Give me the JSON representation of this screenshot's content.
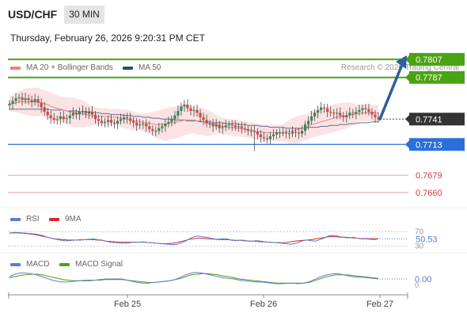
{
  "header": {
    "symbol": "USD/CHF",
    "timeframe": "30 MIN",
    "datetime": "Thursday, February 26, 2026 9:20:31 PM CET"
  },
  "legend": {
    "ma20_label": "MA 20 + Bollinger Bands",
    "ma50_label": "MA 50",
    "research_label": "Research © 2026 Trading Central",
    "rsi_label": "RSI",
    "rsi_ma_label": "9MA",
    "macd_label": "MACD",
    "macd_signal_label": "MACD Signal"
  },
  "colors": {
    "up_candle": "#2e8b57",
    "down_candle": "#d64545",
    "ma20": "#f08080",
    "ma50": "#2b4a7c",
    "bollinger_fill": "#fbdada",
    "resistance": "#4aa312",
    "support": "#2a6fdb",
    "weak_support": "#ef9a9a",
    "current_price": "#333333",
    "arrow": "#2e5d9c",
    "rsi": "#5b7bd5",
    "rsi_ma": "#d62b2b",
    "macd": "#5b7bd5",
    "macd_signal": "#4aa312"
  },
  "chart_data": {
    "type": "candlestick",
    "instrument": "USD/CHF",
    "timeframe": "30 MIN",
    "x_ticks": [
      "Feb 25",
      "Feb 26",
      "Feb 27"
    ],
    "price_ylim": [
      0.7645,
      0.782
    ],
    "levels": [
      {
        "label": "0.7807",
        "value": 0.7807,
        "kind": "resistance"
      },
      {
        "label": "0.7787",
        "value": 0.7787,
        "kind": "resistance"
      },
      {
        "label": "0.7741",
        "value": 0.7741,
        "kind": "current"
      },
      {
        "label": "0.7713",
        "value": 0.7713,
        "kind": "support"
      },
      {
        "label": "0.7679",
        "value": 0.7679,
        "kind": "weak_support"
      },
      {
        "label": "0.7660",
        "value": 0.766,
        "kind": "weak_support"
      }
    ],
    "close": [
      0.7758,
      0.7761,
      0.7764,
      0.7765,
      0.7762,
      0.7764,
      0.7762,
      0.776,
      0.7763,
      0.7759,
      0.7754,
      0.7749,
      0.7745,
      0.7742,
      0.774,
      0.7741,
      0.7744,
      0.7741,
      0.7742,
      0.7745,
      0.7748,
      0.7746,
      0.7749,
      0.775,
      0.7747,
      0.7749,
      0.7746,
      0.7741,
      0.7739,
      0.7737,
      0.7738,
      0.774,
      0.7737,
      0.7736,
      0.7739,
      0.7741,
      0.7743,
      0.7742,
      0.7739,
      0.7737,
      0.7734,
      0.7735,
      0.7736,
      0.7733,
      0.773,
      0.7728,
      0.7728,
      0.7731,
      0.7733,
      0.7736,
      0.7738,
      0.7741,
      0.7745,
      0.775,
      0.7755,
      0.7757,
      0.7753,
      0.775,
      0.7751,
      0.7748,
      0.7743,
      0.774,
      0.7736,
      0.7736,
      0.7733,
      0.7735,
      0.7731,
      0.7732,
      0.7734,
      0.7735,
      0.7734,
      0.7732,
      0.7733,
      0.7731,
      0.773,
      0.7728,
      0.7728,
      0.7727,
      0.7724,
      0.7721,
      0.772,
      0.7719,
      0.7722,
      0.7724,
      0.7726,
      0.7726,
      0.7726,
      0.7725,
      0.7725,
      0.7727,
      0.7726,
      0.7725,
      0.7728,
      0.7735,
      0.7739,
      0.7744,
      0.7748,
      0.7751,
      0.7754,
      0.7753,
      0.7749,
      0.7748,
      0.7747,
      0.7748,
      0.7745,
      0.7743,
      0.7745,
      0.7748,
      0.7747,
      0.7749,
      0.7751,
      0.7753,
      0.7752,
      0.7749,
      0.7746,
      0.7743,
      0.7741
    ],
    "ma20": [
      0.7758,
      0.7758,
      0.7759,
      0.776,
      0.776,
      0.776,
      0.776,
      0.776,
      0.776,
      0.776,
      0.7759,
      0.7758,
      0.7757,
      0.7755,
      0.7754,
      0.7753,
      0.7752,
      0.7751,
      0.775,
      0.7749,
      0.7749,
      0.7748,
      0.7747,
      0.7747,
      0.7746,
      0.7745,
      0.7745,
      0.7744,
      0.7744,
      0.7744,
      0.7744,
      0.7744,
      0.7743,
      0.7743,
      0.7743,
      0.7742,
      0.7741,
      0.7741,
      0.774,
      0.7739,
      0.7739,
      0.7738,
      0.7737,
      0.7737,
      0.7736,
      0.7736,
      0.7735,
      0.7735,
      0.7735,
      0.7735,
      0.7736,
      0.7737,
      0.7737,
      0.7738,
      0.7739,
      0.774,
      0.774,
      0.774,
      0.774,
      0.7739,
      0.7739,
      0.7738,
      0.7737,
      0.7736,
      0.7736,
      0.7735,
      0.7734,
      0.7733,
      0.7733,
      0.7732,
      0.7732,
      0.7731,
      0.7731,
      0.773,
      0.773,
      0.7729,
      0.7729,
      0.7728,
      0.7727,
      0.7727,
      0.7726,
      0.7726,
      0.7726,
      0.7726,
      0.7726,
      0.7726,
      0.7726,
      0.7727,
      0.7727,
      0.7728,
      0.7729,
      0.773,
      0.7731,
      0.7732,
      0.7733,
      0.7735,
      0.7736,
      0.7737,
      0.7738,
      0.7739,
      0.774,
      0.7741,
      0.7742,
      0.7743,
      0.7744,
      0.7744,
      0.7745,
      0.7746,
      0.7746,
      0.7747,
      0.7747,
      0.7748,
      0.7748,
      0.7748,
      0.7748,
      0.7748,
      0.7747
    ],
    "ma50": [
      0.7752,
      0.7752,
      0.7752,
      0.7752,
      0.7752,
      0.7752,
      0.7752,
      0.7752,
      0.7752,
      0.7752,
      0.7752,
      0.7752,
      0.7752,
      0.7751,
      0.7751,
      0.7751,
      0.7751,
      0.7751,
      0.775,
      0.775,
      0.775,
      0.775,
      0.7749,
      0.7749,
      0.7749,
      0.7749,
      0.7749,
      0.7748,
      0.7748,
      0.7747,
      0.7747,
      0.7747,
      0.7746,
      0.7746,
      0.7746,
      0.7746,
      0.7745,
      0.7745,
      0.7745,
      0.7744,
      0.7744,
      0.7744,
      0.7743,
      0.7743,
      0.7743,
      0.7742,
      0.7742,
      0.7742,
      0.7741,
      0.7741,
      0.7741,
      0.7741,
      0.774,
      0.774,
      0.774,
      0.774,
      0.7739,
      0.7739,
      0.7739,
      0.7739,
      0.7738,
      0.7738,
      0.7738,
      0.7738,
      0.7737,
      0.7737,
      0.7737,
      0.7737,
      0.7736,
      0.7736,
      0.7736,
      0.7736,
      0.7735,
      0.7735,
      0.7735,
      0.7734,
      0.7734,
      0.7734,
      0.7734,
      0.7733,
      0.7733,
      0.7733,
      0.7732,
      0.7732,
      0.7732,
      0.7732,
      0.7732,
      0.7731,
      0.7731,
      0.7731,
      0.7731,
      0.7731,
      0.7731,
      0.7731,
      0.7732,
      0.7732,
      0.7732,
      0.7732,
      0.7733,
      0.7733,
      0.7733,
      0.7734,
      0.7734,
      0.7734,
      0.7735,
      0.7735,
      0.7735,
      0.7736,
      0.7736,
      0.7736,
      0.7737,
      0.7737,
      0.7737,
      0.7737,
      0.7738,
      0.7738,
      0.7738
    ],
    "projection": {
      "from": 0.7741,
      "to": 0.7807
    },
    "rsi": {
      "levels": [
        "70",
        "30"
      ],
      "value_label": "50.53",
      "ylim": [
        20,
        80
      ],
      "values": [
        66,
        68,
        68,
        67,
        66,
        65,
        64,
        62,
        59,
        55,
        52,
        49,
        47,
        45,
        45,
        46,
        47,
        47,
        48,
        49,
        50,
        48,
        47,
        44,
        41,
        40,
        39,
        38,
        38,
        40,
        41,
        41,
        42,
        40,
        39,
        38,
        37,
        36,
        35,
        34,
        35,
        39,
        44,
        51,
        56,
        58,
        56,
        55,
        52,
        50,
        49,
        51,
        50,
        46,
        45,
        47,
        46,
        44,
        44,
        45,
        44,
        42,
        41,
        40,
        39,
        38,
        37,
        35,
        37,
        41,
        45,
        47,
        45,
        44,
        48,
        52,
        58,
        60,
        59,
        56,
        54,
        53,
        55,
        52,
        50,
        50,
        49,
        48,
        50
      ],
      "ma": [
        67,
        67,
        67,
        66,
        65,
        64,
        62,
        60,
        57,
        55,
        52,
        50,
        49,
        48,
        47,
        47,
        47,
        48,
        48,
        48,
        48,
        47,
        46,
        44,
        43,
        42,
        41,
        41,
        41,
        41,
        41,
        41,
        41,
        40,
        39,
        38,
        37,
        37,
        37,
        38,
        40,
        43,
        46,
        49,
        51,
        52,
        52,
        51,
        50,
        49,
        48,
        48,
        48,
        47,
        46,
        46,
        45,
        44,
        44,
        43,
        42,
        42,
        41,
        40,
        40,
        39,
        40,
        42,
        44,
        45,
        46,
        47,
        48,
        50,
        52,
        54,
        56,
        57,
        56,
        55,
        55,
        54,
        53,
        52,
        51,
        51,
        51,
        51,
        51
      ]
    },
    "macd": {
      "value_label": "0.00",
      "zero_label": "0",
      "ylim": [
        -0.0016,
        0.0016
      ],
      "values": [
        0.0004,
        0.0008,
        0.001,
        0.001,
        0.0009,
        0.0007,
        0.0004,
        0.0001,
        -0.0002,
        -0.0004,
        -0.0005,
        -0.0005,
        -0.0004,
        -0.0003,
        -0.0002,
        -0.0002,
        -0.0002,
        -0.0001,
        0.0,
        0.0,
        0.0,
        0.0,
        -0.0002,
        -0.0004,
        -0.0006,
        -0.0007,
        -0.0007,
        -0.0006,
        -0.0005,
        -0.0004,
        -0.0003,
        -0.0001,
        0.0003,
        0.0007,
        0.001,
        0.0011,
        0.001,
        0.0008,
        0.0006,
        0.0004,
        0.0002,
        0.0001,
        0.0,
        -0.0002,
        -0.0003,
        -0.0004,
        -0.0005,
        -0.0005,
        -0.0006,
        -0.0007,
        -0.0008,
        -0.0008,
        -0.0007,
        -0.0007,
        -0.0008,
        -0.0007,
        -0.0005,
        -0.0001,
        0.0003,
        0.0006,
        0.0008,
        0.0009,
        0.0008,
        0.0006,
        0.0004,
        0.0003,
        0.0003,
        0.0002,
        0.0001,
        0.0
      ],
      "signal": [
        0.0002,
        0.0004,
        0.0006,
        0.0007,
        0.0008,
        0.0008,
        0.0007,
        0.0005,
        0.0003,
        0.0001,
        -0.0001,
        -0.0002,
        -0.0003,
        -0.0003,
        -0.0003,
        -0.0003,
        -0.0002,
        -0.0002,
        -0.0001,
        -0.0001,
        -0.0001,
        -0.0001,
        -0.0002,
        -0.0003,
        -0.0004,
        -0.0005,
        -0.0006,
        -0.0006,
        -0.0005,
        -0.0004,
        -0.0003,
        -0.0001,
        0.0001,
        0.0004,
        0.0007,
        0.0008,
        0.0009,
        0.0009,
        0.0008,
        0.0007,
        0.0005,
        0.0004,
        0.0002,
        0.0,
        -0.0001,
        -0.0002,
        -0.0003,
        -0.0004,
        -0.0005,
        -0.0006,
        -0.0007,
        -0.0007,
        -0.0007,
        -0.0007,
        -0.0007,
        -0.0007,
        -0.0006,
        -0.0003,
        0.0,
        0.0003,
        0.0005,
        0.0007,
        0.0007,
        0.0007,
        0.0006,
        0.0005,
        0.0004,
        0.0003,
        0.0002,
        0.0001
      ]
    }
  }
}
